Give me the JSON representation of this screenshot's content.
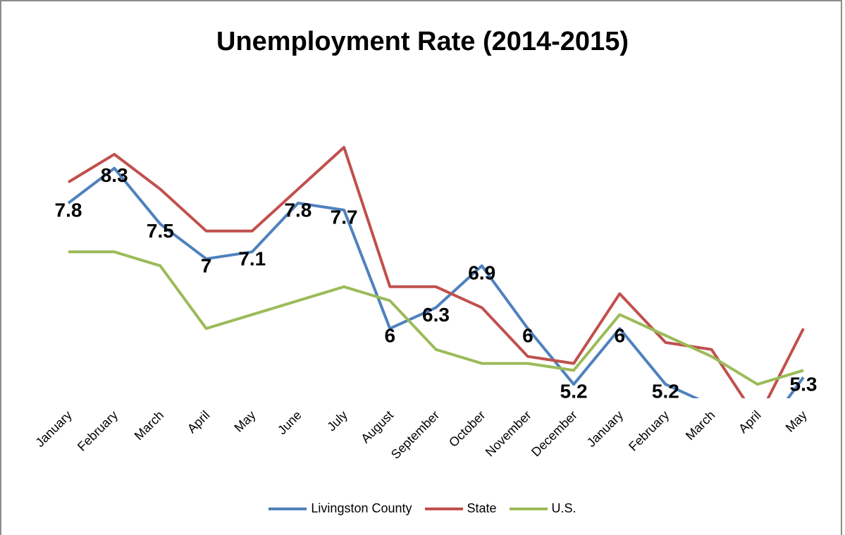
{
  "chart_data": {
    "type": "line",
    "title": "Unemployment Rate (2014-2015)",
    "xlabel": "",
    "ylabel": "",
    "categories": [
      "January",
      "February",
      "March",
      "April",
      "May",
      "June",
      "July",
      "August",
      "September",
      "October",
      "November",
      "December",
      "January",
      "February",
      "March",
      "April",
      "May"
    ],
    "ylim": [
      5.0,
      9.5
    ],
    "grid": false,
    "legend": "bottom",
    "series": [
      {
        "name": "Livingston County",
        "color": "#4f81bd",
        "values": [
          7.8,
          8.3,
          7.5,
          7.0,
          7.1,
          7.8,
          7.7,
          6.0,
          6.3,
          6.9,
          6.0,
          5.2,
          6.0,
          5.2,
          4.9,
          4.4,
          5.3
        ],
        "data_labels": [
          "7.8",
          "8.3",
          "7.5",
          "7",
          "7.1",
          "7.8",
          "7.7",
          "6",
          "6.3",
          "6.9",
          "6",
          "5.2",
          "6",
          "5.2",
          "",
          "",
          "5.3"
        ]
      },
      {
        "name": "State",
        "color": "#c0504d",
        "values": [
          8.1,
          8.5,
          8.0,
          7.4,
          7.4,
          8.0,
          8.6,
          6.6,
          6.6,
          6.3,
          5.6,
          5.5,
          6.5,
          5.8,
          5.7,
          4.7,
          6.0
        ]
      },
      {
        "name": "U.S.",
        "color": "#9bbb59",
        "values": [
          7.1,
          7.1,
          6.9,
          6.0,
          6.2,
          6.4,
          6.6,
          6.4,
          5.7,
          5.5,
          5.5,
          5.4,
          6.2,
          5.9,
          5.6,
          5.2,
          5.4
        ]
      }
    ]
  }
}
